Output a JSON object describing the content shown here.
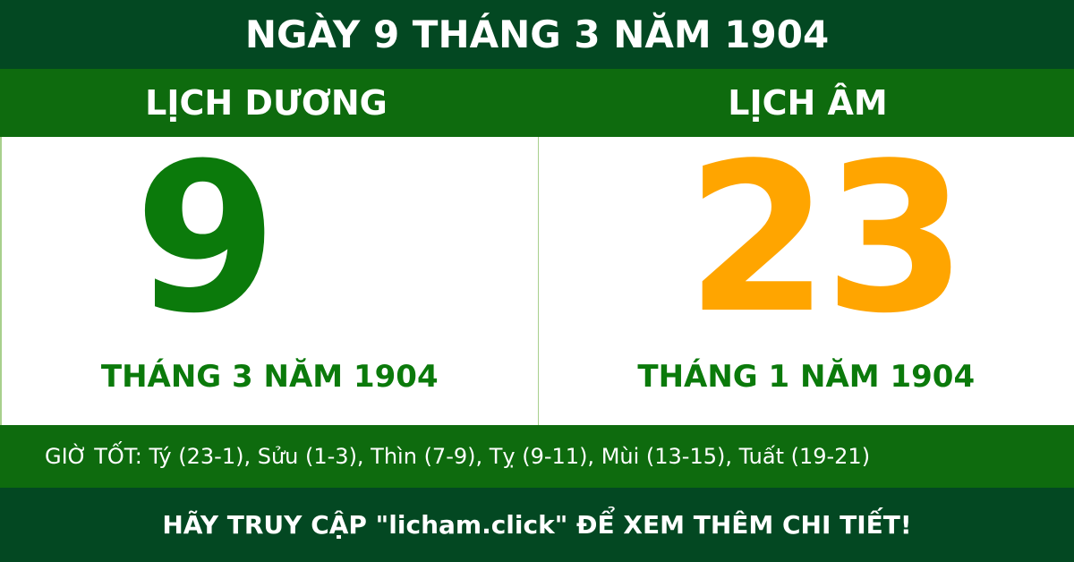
{
  "title": "NGÀY 9 THÁNG 3 NĂM 1904",
  "solar": {
    "label": "LỊCH DƯƠNG",
    "day": "9",
    "month_year": "THÁNG 3 NĂM 1904"
  },
  "lunar": {
    "label": "LỊCH ÂM",
    "day": "23",
    "month_year": "THÁNG 1 NĂM 1904"
  },
  "good_hours": "GIỜ TỐT: Tý (23-1), Sửu (1-3), Thìn (7-9), Tỵ (9-11), Mùi (13-15), Tuất (19-21)",
  "footer": "HÃY TRUY CẬP \"licham.click\" ĐỂ XEM THÊM CHI TIẾT!",
  "colors": {
    "dark_green": "#034822",
    "green": "#0e6b0e",
    "solar_day": "#0b7a0b",
    "lunar_day": "#ffa500"
  }
}
